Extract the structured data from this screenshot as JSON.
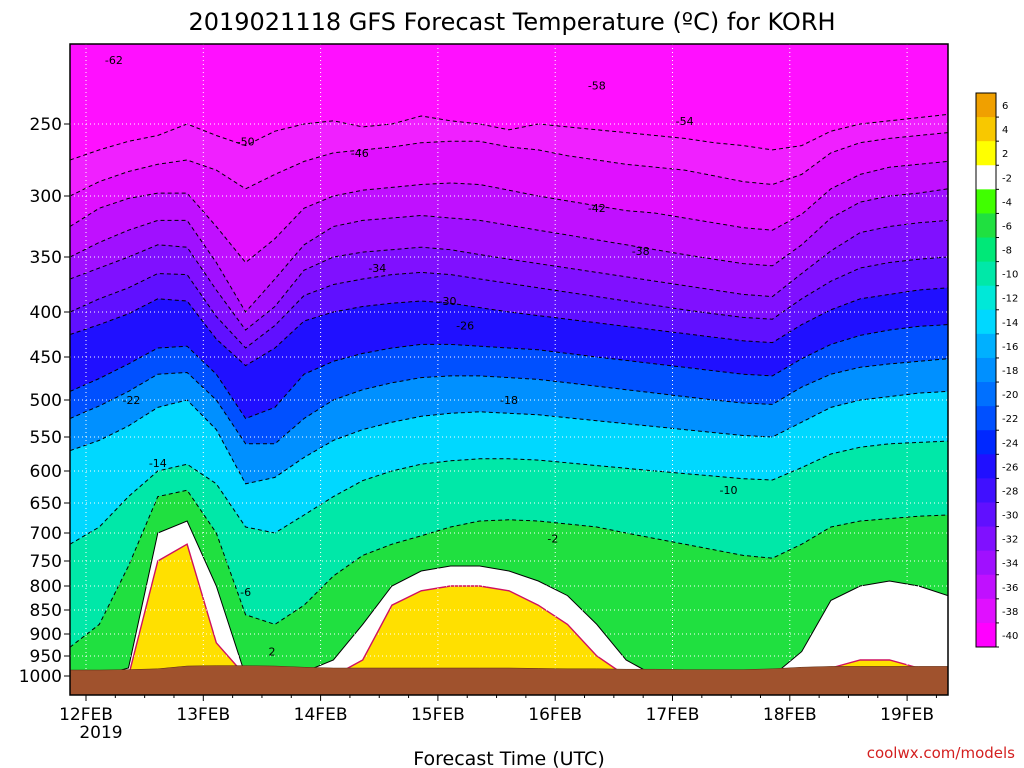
{
  "chart_data": {
    "type": "heatmap",
    "title": "2019021118 GFS Forecast Temperature (ºC) for KORH",
    "xlabel": "Forecast Time (UTC)",
    "ylabel": "",
    "credit": "coolwx.com/models",
    "y_axis": {
      "scale": "pressure (inverted, log-like)",
      "range_hPa": [
        200,
        1020
      ],
      "ticks": [
        "250",
        "300",
        "350",
        "400",
        "450",
        "500",
        "550",
        "600",
        "650",
        "700",
        "750",
        "800",
        "850",
        "900",
        "950",
        "1000"
      ]
    },
    "x_axis": {
      "range": [
        "2019-02-11T18",
        "2019-02-19T18"
      ],
      "ticks": [
        "12FEB",
        "13FEB",
        "14FEB",
        "15FEB",
        "16FEB",
        "17FEB",
        "18FEB",
        "19FEB"
      ],
      "sublabel": "2019"
    },
    "grid": true,
    "legend": "right colorbar",
    "colorbar": {
      "levels": [
        "6",
        "4",
        "2",
        "-2",
        "-4",
        "-6",
        "-8",
        "-10",
        "-12",
        "-14",
        "-16",
        "-18",
        "-20",
        "-22",
        "-24",
        "-26",
        "-28",
        "-30",
        "-32",
        "-34",
        "-36",
        "-38",
        "-40"
      ],
      "colors": [
        "#f0a000",
        "#f8c800",
        "#ffff00",
        "#ffffff",
        "#40ff00",
        "#20e040",
        "#00e878",
        "#00e8a8",
        "#00e8d8",
        "#00d8ff",
        "#00b0ff",
        "#0090ff",
        "#0070ff",
        "#0050ff",
        "#0028ff",
        "#2010ff",
        "#4010ff",
        "#6010ff",
        "#8010ff",
        "#a010ff",
        "#c010ff",
        "#e010ff",
        "#ff00ff"
      ]
    },
    "contour_labels": [
      "-62",
      "-58",
      "-54",
      "-50",
      "-46",
      "-42",
      "-38",
      "-34",
      "-30",
      "-26",
      "-22",
      "-18",
      "-14",
      "-10",
      "-6",
      "-2",
      "2"
    ],
    "isotherms": [
      {
        "temp": -50,
        "pressure": [
          275,
          268,
          262,
          258,
          250,
          258,
          265,
          255,
          250,
          248,
          252,
          250,
          245,
          248,
          250,
          254,
          250,
          252,
          254,
          256,
          258,
          260,
          263,
          265,
          268,
          265,
          255,
          250,
          248,
          246,
          244
        ]
      },
      {
        "temp": -46,
        "pressure": [
          300,
          290,
          283,
          278,
          275,
          282,
          295,
          285,
          276,
          270,
          268,
          266,
          263,
          262,
          262,
          266,
          268,
          272,
          275,
          278,
          280,
          282,
          286,
          290,
          292,
          285,
          270,
          263,
          260,
          258,
          256
        ]
      },
      {
        "temp": -42,
        "pressure": [
          325,
          310,
          302,
          298,
          298,
          325,
          355,
          335,
          310,
          300,
          296,
          294,
          292,
          291,
          292,
          296,
          300,
          304,
          308,
          312,
          314,
          318,
          322,
          326,
          328,
          315,
          295,
          285,
          280,
          278,
          276
        ]
      },
      {
        "temp": -38,
        "pressure": [
          350,
          338,
          328,
          320,
          320,
          355,
          400,
          370,
          340,
          325,
          320,
          318,
          316,
          318,
          320,
          324,
          328,
          332,
          336,
          340,
          344,
          348,
          352,
          356,
          358,
          340,
          318,
          305,
          300,
          298,
          295
        ]
      },
      {
        "temp": -34,
        "pressure": [
          370,
          360,
          350,
          340,
          342,
          380,
          420,
          395,
          362,
          350,
          346,
          344,
          342,
          344,
          348,
          352,
          356,
          360,
          364,
          368,
          372,
          376,
          380,
          384,
          386,
          365,
          345,
          330,
          325,
          322,
          320
        ]
      },
      {
        "temp": -30,
        "pressure": [
          400,
          388,
          378,
          365,
          366,
          405,
          440,
          415,
          385,
          375,
          370,
          366,
          364,
          366,
          370,
          374,
          378,
          382,
          386,
          390,
          394,
          398,
          402,
          406,
          408,
          388,
          372,
          360,
          355,
          352,
          350
        ]
      },
      {
        "temp": -26,
        "pressure": [
          425,
          414,
          402,
          388,
          390,
          430,
          460,
          440,
          410,
          400,
          395,
          392,
          390,
          392,
          396,
          400,
          404,
          408,
          412,
          416,
          420,
          424,
          428,
          432,
          434,
          414,
          398,
          388,
          384,
          380,
          378
        ]
      },
      {
        "temp": -22,
        "pressure": [
          490,
          475,
          458,
          440,
          438,
          470,
          525,
          510,
          470,
          455,
          446,
          440,
          436,
          436,
          438,
          440,
          442,
          446,
          450,
          454,
          458,
          462,
          466,
          470,
          472,
          452,
          436,
          426,
          420,
          416,
          414
        ]
      },
      {
        "temp": -18,
        "pressure": [
          525,
          508,
          490,
          470,
          468,
          500,
          560,
          560,
          525,
          500,
          488,
          480,
          474,
          472,
          472,
          474,
          476,
          480,
          484,
          488,
          492,
          496,
          500,
          504,
          506,
          485,
          470,
          462,
          458,
          455,
          452
        ]
      },
      {
        "temp": -14,
        "pressure": [
          570,
          555,
          535,
          510,
          500,
          540,
          620,
          610,
          580,
          555,
          540,
          530,
          522,
          518,
          516,
          518,
          520,
          524,
          528,
          532,
          536,
          540,
          544,
          548,
          550,
          530,
          510,
          500,
          496,
          492,
          490
        ]
      },
      {
        "temp": -10,
        "pressure": [
          720,
          690,
          640,
          600,
          590,
          620,
          690,
          700,
          670,
          640,
          615,
          600,
          590,
          585,
          582,
          582,
          584,
          588,
          592,
          596,
          600,
          604,
          608,
          612,
          614,
          595,
          575,
          565,
          560,
          558,
          556
        ]
      },
      {
        "temp": -6,
        "pressure": [
          930,
          880,
          760,
          640,
          630,
          700,
          860,
          880,
          840,
          780,
          740,
          720,
          705,
          690,
          680,
          678,
          680,
          685,
          690,
          700,
          710,
          720,
          730,
          740,
          745,
          720,
          690,
          680,
          676,
          672,
          670
        ]
      },
      {
        "temp": -2,
        "pressure": [
          1000,
          1000,
          980,
          700,
          680,
          800,
          1000,
          1000,
          990,
          960,
          880,
          800,
          770,
          760,
          760,
          770,
          790,
          820,
          880,
          960,
          1000,
          1000,
          1000,
          1000,
          1000,
          940,
          830,
          800,
          790,
          800,
          820
        ]
      },
      {
        "temp": 2,
        "pressure": [
          1000,
          1000,
          1000,
          750,
          720,
          920,
          1000,
          1000,
          1000,
          1000,
          960,
          840,
          810,
          800,
          800,
          810,
          840,
          880,
          950,
          1000,
          1000,
          1000,
          1000,
          1000,
          1000,
          1000,
          980,
          960,
          960,
          980,
          1000
        ]
      }
    ]
  }
}
